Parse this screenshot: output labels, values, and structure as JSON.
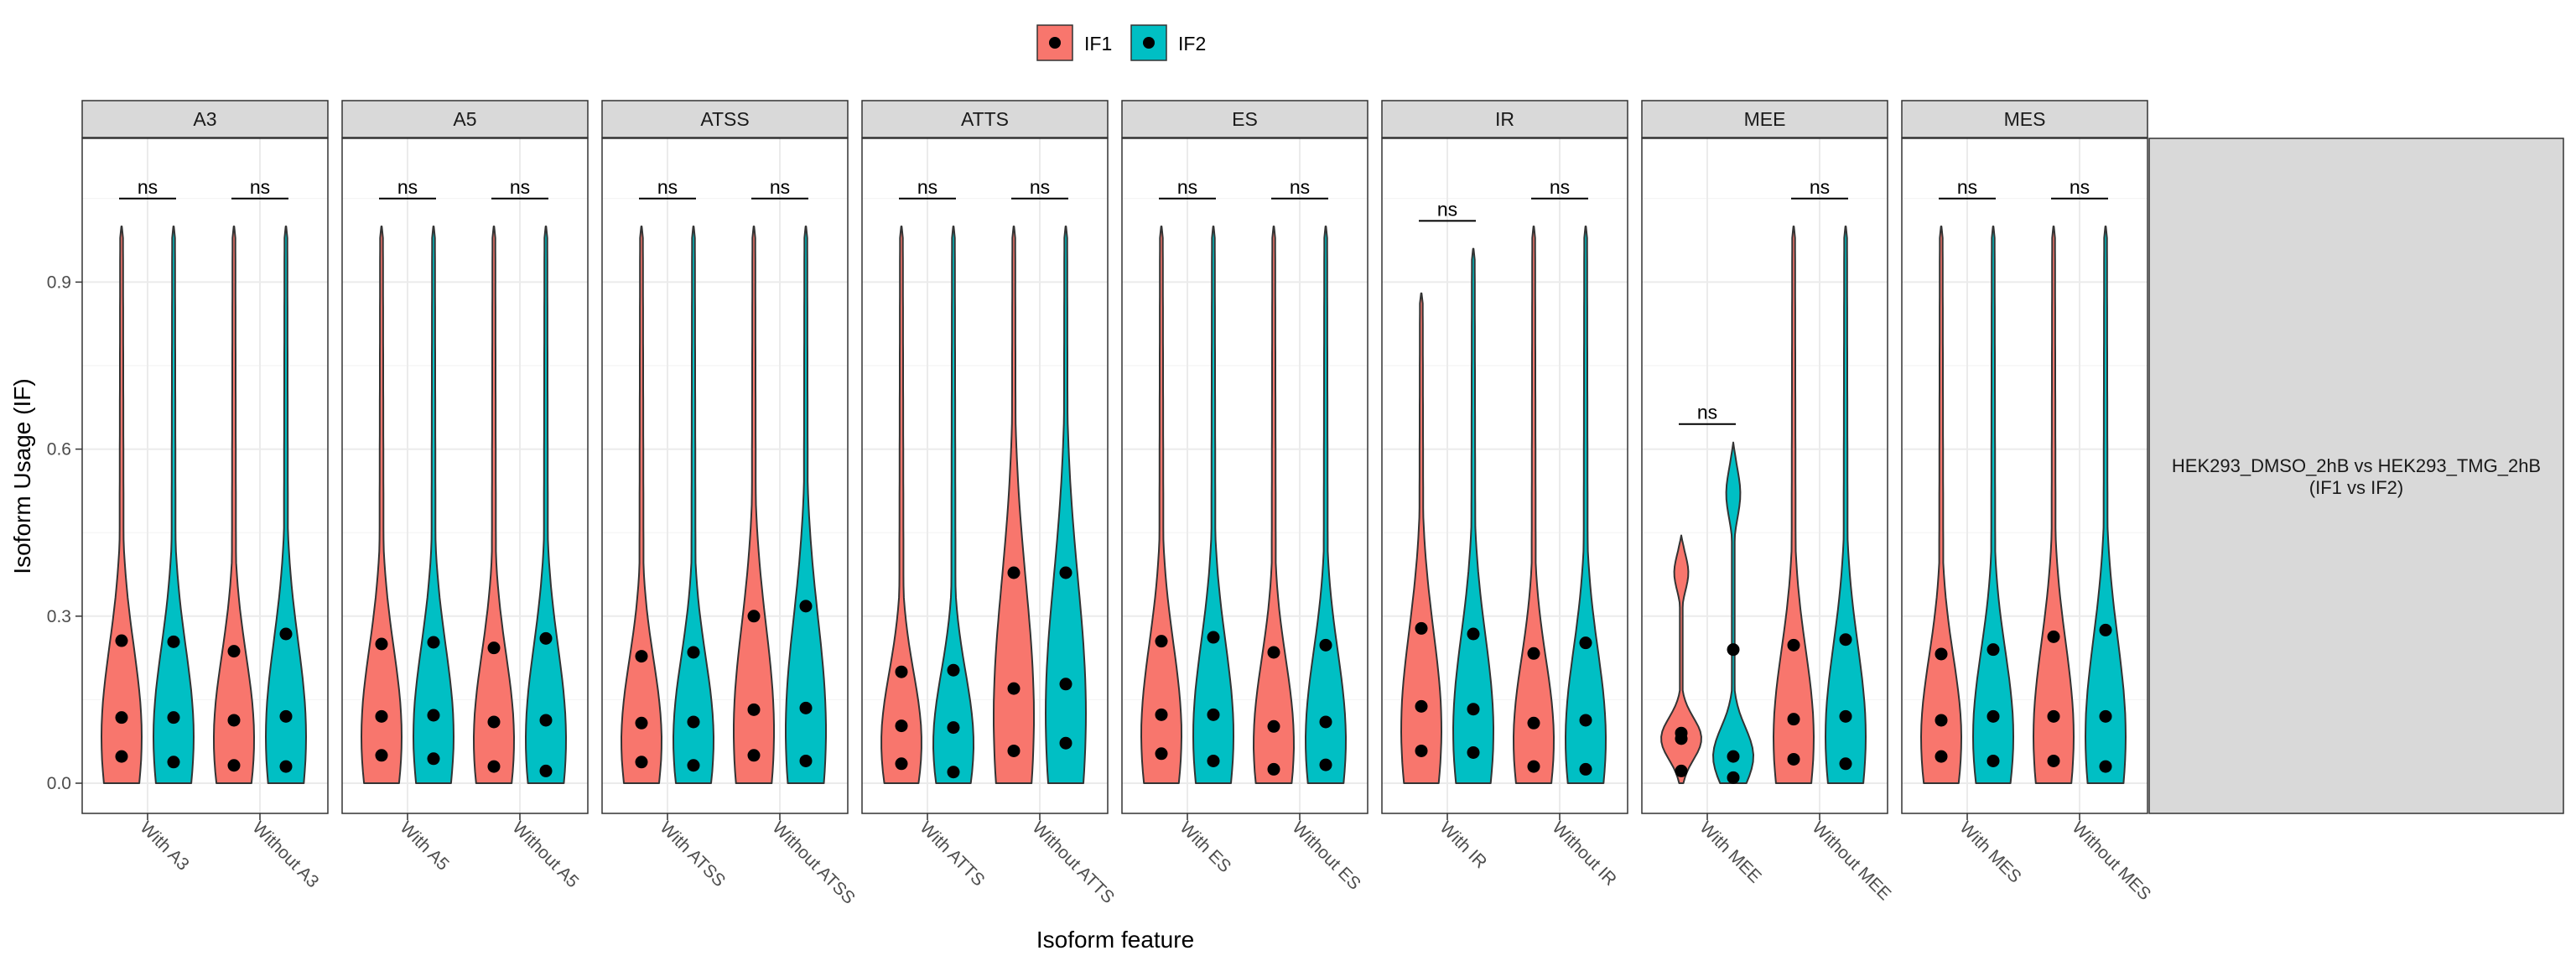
{
  "chart_data": {
    "type": "violin",
    "xlabel": "Isoform feature",
    "ylabel": "Isoform Usage (IF)",
    "ylim": [
      0,
      1.1
    ],
    "yticks": [
      "0.0",
      "0.3",
      "0.6",
      "0.9"
    ],
    "ytick_values": [
      0,
      0.3,
      0.6,
      0.9
    ],
    "grid": true,
    "legend_position": "top",
    "legend": [
      {
        "name": "IF1",
        "color": "#F8766D"
      },
      {
        "name": "IF2",
        "color": "#00BFC4"
      }
    ],
    "side_strip": {
      "line1": "HEK293_DMSO_2hB vs HEK293_TMG_2hB",
      "line2": "(IF1 vs IF2)"
    },
    "panels": [
      {
        "name": "A3",
        "groups": [
          {
            "label": "With A3",
            "sig": "ns",
            "sig_y": 1.05,
            "IF1": {
              "max": 1.0,
              "points": [
                0.256,
                0.118,
                0.048
              ]
            },
            "IF2": {
              "max": 1.0,
              "points": [
                0.254,
                0.118,
                0.038
              ]
            }
          },
          {
            "label": "Without A3",
            "sig": "ns",
            "sig_y": 1.05,
            "IF1": {
              "max": 1.0,
              "points": [
                0.237,
                0.113,
                0.032
              ]
            },
            "IF2": {
              "max": 1.0,
              "points": [
                0.268,
                0.12,
                0.03
              ]
            }
          }
        ]
      },
      {
        "name": "A5",
        "groups": [
          {
            "label": "With A5",
            "sig": "ns",
            "sig_y": 1.05,
            "IF1": {
              "max": 1.0,
              "points": [
                0.25,
                0.12,
                0.05
              ]
            },
            "IF2": {
              "max": 1.0,
              "points": [
                0.253,
                0.122,
                0.044
              ]
            }
          },
          {
            "label": "Without A5",
            "sig": "ns",
            "sig_y": 1.05,
            "IF1": {
              "max": 1.0,
              "points": [
                0.243,
                0.11,
                0.03
              ]
            },
            "IF2": {
              "max": 1.0,
              "points": [
                0.26,
                0.113,
                0.022
              ]
            }
          }
        ]
      },
      {
        "name": "ATSS",
        "groups": [
          {
            "label": "With ATSS",
            "sig": "ns",
            "sig_y": 1.05,
            "IF1": {
              "max": 1.0,
              "points": [
                0.228,
                0.108,
                0.038
              ]
            },
            "IF2": {
              "max": 1.0,
              "points": [
                0.235,
                0.11,
                0.032
              ]
            }
          },
          {
            "label": "Without ATSS",
            "sig": "ns",
            "sig_y": 1.05,
            "IF1": {
              "max": 1.0,
              "points": [
                0.3,
                0.132,
                0.05
              ]
            },
            "IF2": {
              "max": 1.0,
              "points": [
                0.318,
                0.135,
                0.04
              ]
            }
          }
        ]
      },
      {
        "name": "ATTS",
        "groups": [
          {
            "label": "With ATTS",
            "sig": "ns",
            "sig_y": 1.05,
            "IF1": {
              "max": 1.0,
              "points": [
                0.2,
                0.103,
                0.035
              ]
            },
            "IF2": {
              "max": 1.0,
              "points": [
                0.203,
                0.1,
                0.02
              ]
            }
          },
          {
            "label": "Without ATTS",
            "sig": "ns",
            "sig_y": 1.05,
            "IF1": {
              "max": 1.0,
              "points": [
                0.378,
                0.17,
                0.058
              ]
            },
            "IF2": {
              "max": 1.0,
              "points": [
                0.378,
                0.178,
                0.072
              ]
            }
          }
        ]
      },
      {
        "name": "ES",
        "groups": [
          {
            "label": "With ES",
            "sig": "ns",
            "sig_y": 1.05,
            "IF1": {
              "max": 1.0,
              "points": [
                0.255,
                0.123,
                0.053
              ]
            },
            "IF2": {
              "max": 1.0,
              "points": [
                0.262,
                0.123,
                0.04
              ]
            }
          },
          {
            "label": "Without ES",
            "sig": "ns",
            "sig_y": 1.05,
            "IF1": {
              "max": 1.0,
              "points": [
                0.235,
                0.102,
                0.025
              ]
            },
            "IF2": {
              "max": 1.0,
              "points": [
                0.248,
                0.11,
                0.033
              ]
            }
          }
        ]
      },
      {
        "name": "IR",
        "groups": [
          {
            "label": "With IR",
            "sig": "ns",
            "sig_y": 1.01,
            "IF1": {
              "max": 0.88,
              "points": [
                0.278,
                0.138,
                0.058
              ]
            },
            "IF2": {
              "max": 0.96,
              "points": [
                0.268,
                0.133,
                0.055
              ]
            }
          },
          {
            "label": "Without IR",
            "sig": "ns",
            "sig_y": 1.05,
            "IF1": {
              "max": 1.0,
              "points": [
                0.233,
                0.108,
                0.03
              ]
            },
            "IF2": {
              "max": 1.0,
              "points": [
                0.252,
                0.113,
                0.025
              ]
            }
          }
        ]
      },
      {
        "name": "MEE",
        "groups": [
          {
            "label": "With MEE",
            "sig": "ns",
            "sig_y": 0.645,
            "IF1": {
              "max": 0.445,
              "points": [
                0.09,
                0.08,
                0.022
              ]
            },
            "IF2": {
              "max": 0.612,
              "points": [
                0.24,
                0.048,
                0.01
              ]
            }
          },
          {
            "label": "Without MEE",
            "sig": "ns",
            "sig_y": 1.05,
            "IF1": {
              "max": 1.0,
              "points": [
                0.248,
                0.115,
                0.043
              ]
            },
            "IF2": {
              "max": 1.0,
              "points": [
                0.258,
                0.12,
                0.035
              ]
            }
          }
        ]
      },
      {
        "name": "MES",
        "groups": [
          {
            "label": "With MES",
            "sig": "ns",
            "sig_y": 1.05,
            "IF1": {
              "max": 1.0,
              "points": [
                0.232,
                0.113,
                0.048
              ]
            },
            "IF2": {
              "max": 1.0,
              "points": [
                0.24,
                0.12,
                0.04
              ]
            }
          },
          {
            "label": "Without MES",
            "sig": "ns",
            "sig_y": 1.05,
            "IF1": {
              "max": 1.0,
              "points": [
                0.263,
                0.12,
                0.04
              ]
            },
            "IF2": {
              "max": 1.0,
              "points": [
                0.275,
                0.12,
                0.03
              ]
            }
          }
        ]
      }
    ]
  }
}
